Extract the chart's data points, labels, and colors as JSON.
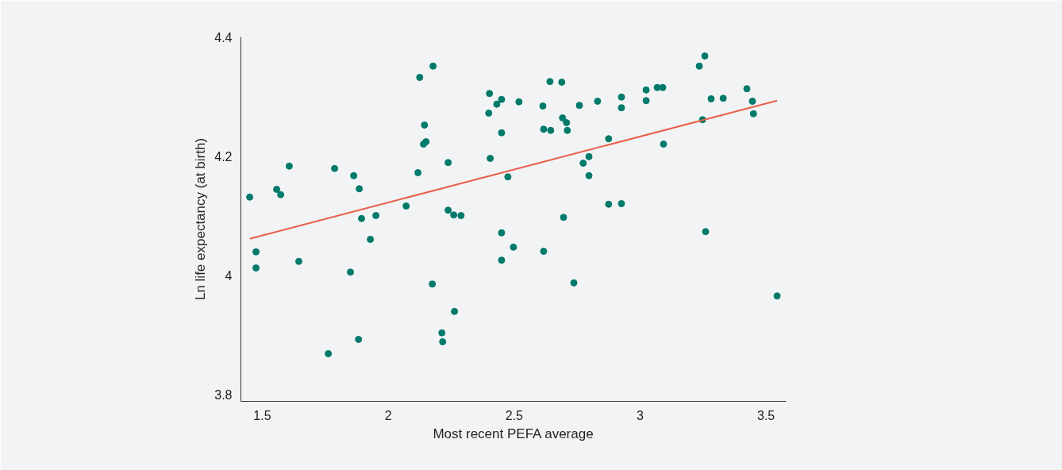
{
  "chart_data": {
    "type": "scatter",
    "xlabel": "Most recent PEFA average",
    "ylabel": "Ln life expectancy (at birth)",
    "xlim": [
      1.415,
      3.58
    ],
    "ylim": [
      3.788,
      4.4
    ],
    "xticks": [
      1.5,
      2,
      2.5,
      3,
      3.5
    ],
    "yticks": [
      3.8,
      4,
      4.2,
      4.4
    ],
    "grid": false,
    "marker": "circle",
    "series": [
      {
        "color": "#007a6a",
        "x": [
          1.45,
          1.475,
          1.475,
          1.557,
          1.573,
          1.607,
          1.645,
          1.762,
          1.787,
          1.85,
          1.863,
          1.882,
          1.885,
          1.894,
          1.929,
          1.951,
          2.071,
          2.118,
          2.125,
          2.14,
          2.144,
          2.15,
          2.175,
          2.178,
          2.213,
          2.216,
          2.238,
          2.238,
          2.26,
          2.263,
          2.289,
          2.402,
          2.399,
          2.405,
          2.431,
          2.45,
          2.45,
          2.45,
          2.45,
          2.475,
          2.497,
          2.519,
          2.614,
          2.617,
          2.617,
          2.642,
          2.645,
          2.689,
          2.692,
          2.696,
          2.708,
          2.711,
          2.737,
          2.759,
          2.774,
          2.797,
          2.797,
          2.831,
          2.875,
          2.875,
          2.926,
          2.926,
          2.926,
          3.024,
          3.024,
          3.068,
          3.09,
          3.093,
          3.235,
          3.248,
          3.257,
          3.26,
          3.282,
          3.33,
          3.424,
          3.446,
          3.45,
          3.544
        ],
        "values": [
          4.131,
          4.039,
          4.012,
          4.144,
          4.135,
          4.183,
          4.023,
          3.868,
          4.179,
          4.005,
          4.167,
          3.892,
          4.145,
          4.095,
          4.06,
          4.1,
          4.116,
          4.172,
          4.332,
          4.22,
          4.252,
          4.224,
          3.985,
          4.351,
          3.903,
          3.888,
          4.189,
          4.109,
          4.101,
          3.939,
          4.1,
          4.305,
          4.272,
          4.196,
          4.287,
          4.071,
          4.025,
          4.295,
          4.239,
          4.165,
          4.047,
          4.291,
          4.284,
          4.245,
          4.04,
          4.325,
          4.243,
          4.324,
          4.264,
          4.097,
          4.256,
          4.243,
          3.987,
          4.285,
          4.188,
          4.199,
          4.167,
          4.292,
          4.229,
          4.119,
          4.299,
          4.281,
          4.12,
          4.311,
          4.293,
          4.315,
          4.315,
          4.22,
          4.351,
          4.261,
          4.368,
          4.073,
          4.296,
          4.297,
          4.313,
          4.292,
          4.271,
          3.965
        ]
      },
      {
        "type": "line",
        "color": "#e8604c",
        "marker": "none",
        "x": [
          1.45,
          3.544
        ],
        "values": [
          4.061,
          4.293
        ]
      }
    ]
  }
}
